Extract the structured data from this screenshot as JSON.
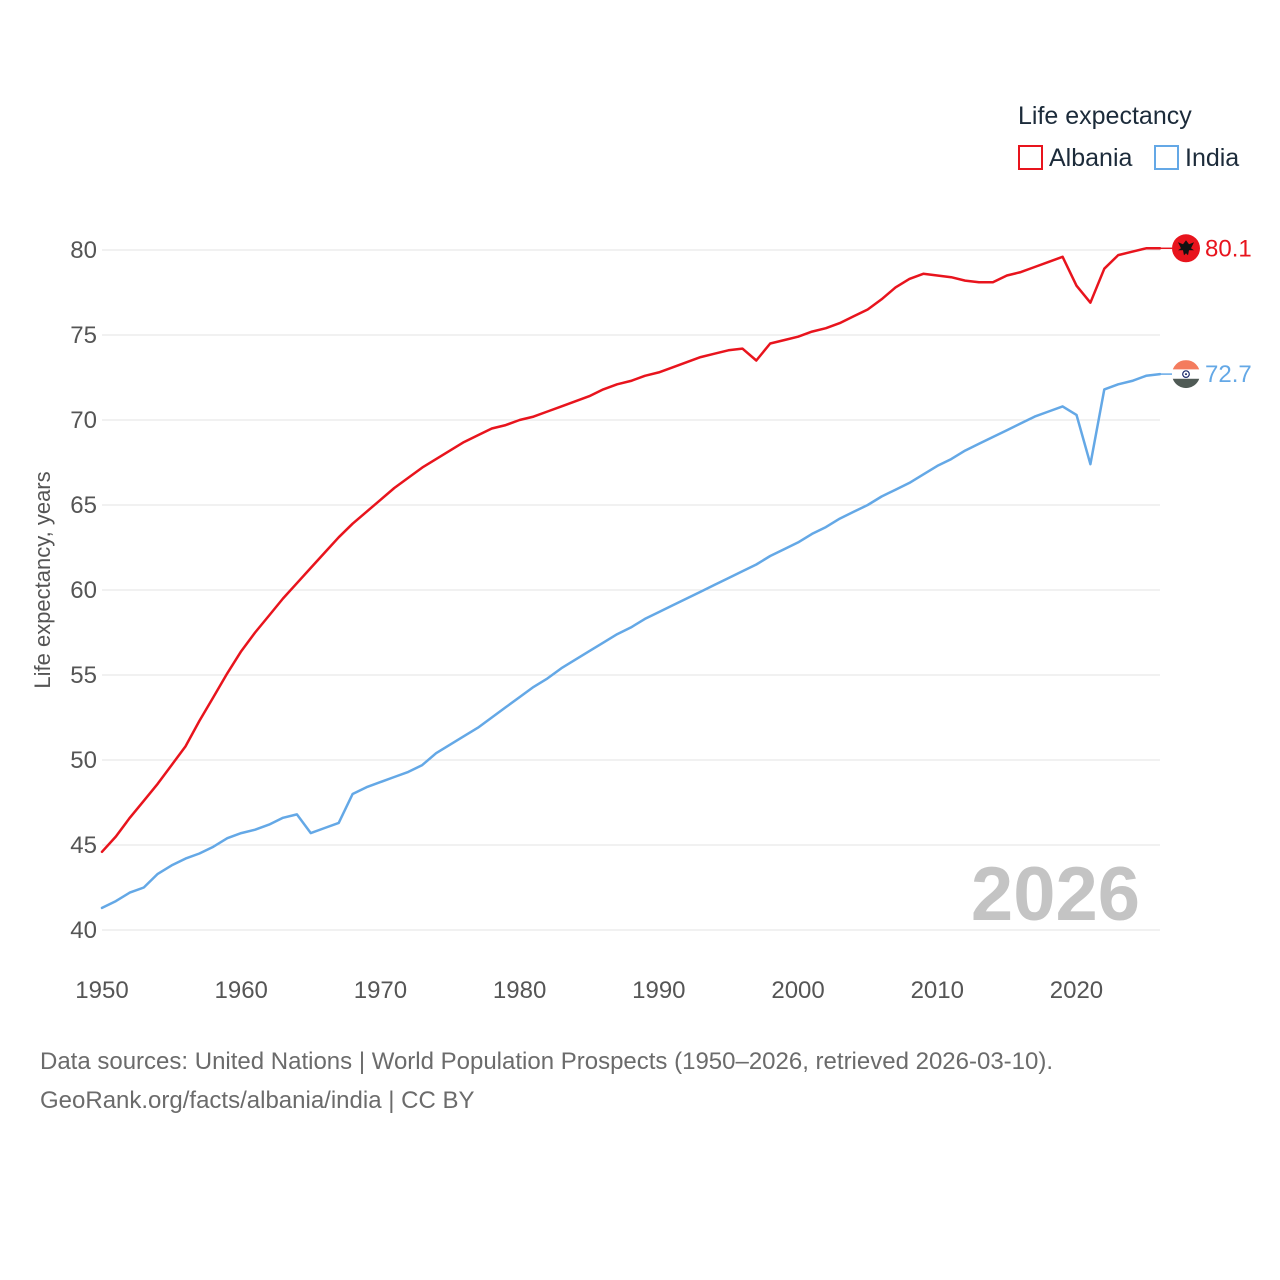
{
  "chart_data": {
    "type": "line",
    "legend_title": "Life expectancy",
    "ylabel": "Life expectancy, years",
    "xlabel": "",
    "ylim": [
      40,
      82
    ],
    "y_ticks": [
      40,
      45,
      50,
      55,
      60,
      65,
      70,
      75,
      80
    ],
    "xlim": [
      1950,
      2026
    ],
    "x_ticks": [
      1950,
      1960,
      1970,
      1980,
      1990,
      2000,
      2010,
      2020
    ],
    "year_watermark": "2026",
    "series": [
      {
        "name": "Albania",
        "color": "#e8141d",
        "end_label": "80.1",
        "flag": "albania-flag",
        "x": [
          1950,
          1951,
          1952,
          1953,
          1954,
          1955,
          1956,
          1957,
          1958,
          1959,
          1960,
          1961,
          1962,
          1963,
          1964,
          1965,
          1966,
          1967,
          1968,
          1969,
          1970,
          1971,
          1972,
          1973,
          1974,
          1975,
          1976,
          1977,
          1978,
          1979,
          1980,
          1981,
          1982,
          1983,
          1984,
          1985,
          1986,
          1987,
          1988,
          1989,
          1990,
          1991,
          1992,
          1993,
          1994,
          1995,
          1996,
          1997,
          1998,
          1999,
          2000,
          2001,
          2002,
          2003,
          2004,
          2005,
          2006,
          2007,
          2008,
          2009,
          2010,
          2011,
          2012,
          2013,
          2014,
          2015,
          2016,
          2017,
          2018,
          2019,
          2020,
          2021,
          2022,
          2023,
          2024,
          2025,
          2026
        ],
        "values": [
          44.6,
          45.5,
          46.6,
          47.6,
          48.6,
          49.7,
          50.8,
          52.3,
          53.7,
          55.1,
          56.4,
          57.5,
          58.5,
          59.5,
          60.4,
          61.3,
          62.2,
          63.1,
          63.9,
          64.6,
          65.3,
          66.0,
          66.6,
          67.2,
          67.7,
          68.2,
          68.7,
          69.1,
          69.5,
          69.7,
          70.0,
          70.2,
          70.5,
          70.8,
          71.1,
          71.4,
          71.8,
          72.1,
          72.3,
          72.6,
          72.8,
          73.1,
          73.4,
          73.7,
          73.9,
          74.1,
          74.2,
          73.5,
          74.5,
          74.7,
          74.9,
          75.2,
          75.4,
          75.7,
          76.1,
          76.5,
          77.1,
          77.8,
          78.3,
          78.6,
          78.5,
          78.4,
          78.2,
          78.1,
          78.1,
          78.5,
          78.7,
          79.0,
          79.3,
          79.6,
          77.9,
          76.9,
          78.9,
          79.7,
          79.9,
          80.1,
          80.1
        ]
      },
      {
        "name": "India",
        "color": "#64a8e6",
        "end_label": "72.7",
        "flag": "india-flag",
        "x": [
          1950,
          1951,
          1952,
          1953,
          1954,
          1955,
          1956,
          1957,
          1958,
          1959,
          1960,
          1961,
          1962,
          1963,
          1964,
          1965,
          1966,
          1967,
          1968,
          1969,
          1970,
          1971,
          1972,
          1973,
          1974,
          1975,
          1976,
          1977,
          1978,
          1979,
          1980,
          1981,
          1982,
          1983,
          1984,
          1985,
          1986,
          1987,
          1988,
          1989,
          1990,
          1991,
          1992,
          1993,
          1994,
          1995,
          1996,
          1997,
          1998,
          1999,
          2000,
          2001,
          2002,
          2003,
          2004,
          2005,
          2006,
          2007,
          2008,
          2009,
          2010,
          2011,
          2012,
          2013,
          2014,
          2015,
          2016,
          2017,
          2018,
          2019,
          2020,
          2021,
          2022,
          2023,
          2024,
          2025,
          2026
        ],
        "values": [
          41.3,
          41.7,
          42.2,
          42.5,
          43.3,
          43.8,
          44.2,
          44.5,
          44.9,
          45.4,
          45.7,
          45.9,
          46.2,
          46.6,
          46.8,
          45.7,
          46.0,
          46.3,
          48.0,
          48.4,
          48.7,
          49.0,
          49.3,
          49.7,
          50.4,
          50.9,
          51.4,
          51.9,
          52.5,
          53.1,
          53.7,
          54.3,
          54.8,
          55.4,
          55.9,
          56.4,
          56.9,
          57.4,
          57.8,
          58.3,
          58.7,
          59.1,
          59.5,
          59.9,
          60.3,
          60.7,
          61.1,
          61.5,
          62.0,
          62.4,
          62.8,
          63.3,
          63.7,
          64.2,
          64.6,
          65.0,
          65.5,
          65.9,
          66.3,
          66.8,
          67.3,
          67.7,
          68.2,
          68.6,
          69.0,
          69.4,
          69.8,
          70.2,
          70.5,
          70.8,
          70.3,
          67.4,
          71.8,
          72.1,
          72.3,
          72.6,
          72.7
        ]
      }
    ]
  },
  "source": {
    "line1": "Data sources: United Nations | World Population Prospects (1950–2026, retrieved 2026-03-10).",
    "line2": "GeoRank.org/facts/albania/india | CC BY"
  }
}
